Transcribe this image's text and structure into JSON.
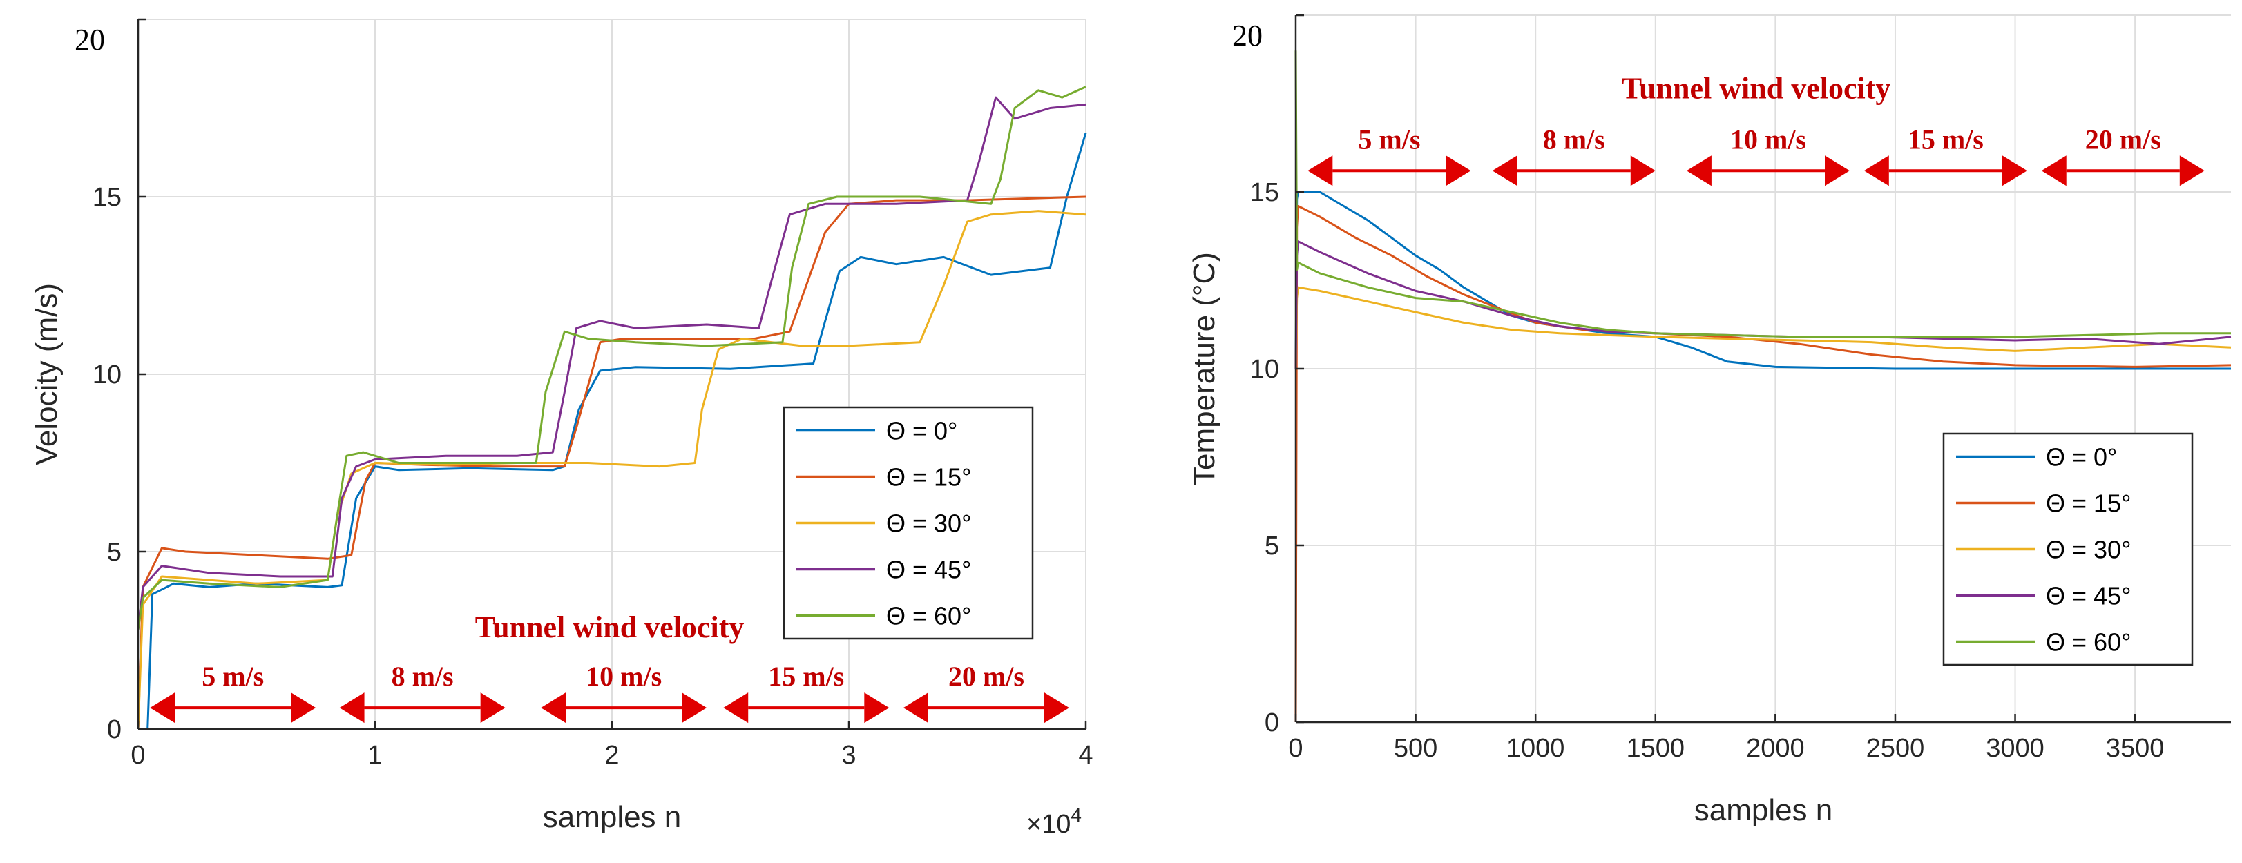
{
  "chart_data": [
    {
      "type": "line",
      "title": "",
      "xlabel": "samples n",
      "ylabel": "Velocity (m/s)",
      "xlim": [
        0,
        4
      ],
      "ylim": [
        0,
        20
      ],
      "x_ticks": [
        0,
        1,
        2,
        3,
        4
      ],
      "y_ticks": [
        0,
        5,
        10,
        15,
        20
      ],
      "x_exponent": "×10",
      "x_exponent_power": "4",
      "corner_label": "20",
      "grid": true,
      "legend_position": "middle-right",
      "annotation": {
        "title": "Tunnel wind velocity",
        "segments": [
          {
            "label": "5 m/s",
            "x_start": 0.05,
            "x_end": 0.75
          },
          {
            "label": "8 m/s",
            "x_start": 0.85,
            "x_end": 1.55
          },
          {
            "label": "10 m/s",
            "x_start": 1.7,
            "x_end": 2.4
          },
          {
            "label": "15 m/s",
            "x_start": 2.47,
            "x_end": 3.17
          },
          {
            "label": "20 m/s",
            "x_start": 3.23,
            "x_end": 3.93
          }
        ],
        "arrow_y": 0.6
      },
      "series": [
        {
          "name": "Θ = 0°",
          "color": "#0072bd",
          "x": [
            0,
            0.04,
            0.06,
            0.15,
            0.3,
            0.5,
            0.8,
            0.86,
            0.92,
            1.0,
            1.1,
            1.4,
            1.75,
            1.8,
            1.86,
            1.95,
            2.1,
            2.5,
            2.85,
            2.9,
            2.96,
            3.05,
            3.2,
            3.4,
            3.6,
            3.85,
            3.92,
            4.0
          ],
          "y": [
            0,
            0,
            3.8,
            4.1,
            4.0,
            4.1,
            4.0,
            4.05,
            6.5,
            7.4,
            7.3,
            7.35,
            7.3,
            7.4,
            9.0,
            10.1,
            10.2,
            10.15,
            10.3,
            11.5,
            12.9,
            13.3,
            13.1,
            13.3,
            12.8,
            13.0,
            15.0,
            16.8
          ]
        },
        {
          "name": "Θ = 15°",
          "color": "#d95319",
          "x": [
            0,
            0.02,
            0.1,
            0.2,
            0.5,
            0.8,
            0.9,
            0.96,
            1.0,
            1.2,
            1.5,
            1.8,
            1.85,
            1.95,
            2.05,
            2.3,
            2.6,
            2.75,
            2.82,
            2.9,
            3.0,
            3.2,
            3.5,
            4.0
          ],
          "y": [
            0,
            4.0,
            5.1,
            5.0,
            4.9,
            4.8,
            4.9,
            7.0,
            7.5,
            7.45,
            7.4,
            7.4,
            8.5,
            10.9,
            11.0,
            11.0,
            11.0,
            11.2,
            12.5,
            14.0,
            14.8,
            14.9,
            14.9,
            15.0
          ]
        },
        {
          "name": "Θ = 30°",
          "color": "#edb120",
          "x": [
            0,
            0.02,
            0.1,
            0.3,
            0.5,
            0.8,
            0.84,
            0.9,
            1.0,
            1.3,
            1.6,
            1.9,
            2.2,
            2.35,
            2.38,
            2.45,
            2.55,
            2.8,
            3.0,
            3.3,
            3.4,
            3.5,
            3.6,
            3.8,
            4.0
          ],
          "y": [
            0,
            3.5,
            4.3,
            4.2,
            4.1,
            4.2,
            6.0,
            7.2,
            7.5,
            7.45,
            7.5,
            7.5,
            7.4,
            7.5,
            9.0,
            10.7,
            11.0,
            10.8,
            10.8,
            10.9,
            12.5,
            14.3,
            14.5,
            14.6,
            14.5
          ]
        },
        {
          "name": "Θ = 45°",
          "color": "#7e2f8e",
          "x": [
            0,
            0.02,
            0.1,
            0.3,
            0.6,
            0.82,
            0.86,
            0.92,
            1.0,
            1.3,
            1.6,
            1.75,
            1.8,
            1.85,
            1.95,
            2.1,
            2.4,
            2.62,
            2.68,
            2.75,
            2.9,
            3.2,
            3.5,
            3.55,
            3.62,
            3.7,
            3.85,
            4.0
          ],
          "y": [
            2.8,
            4.0,
            4.6,
            4.4,
            4.3,
            4.3,
            6.5,
            7.4,
            7.6,
            7.7,
            7.7,
            7.8,
            9.5,
            11.3,
            11.5,
            11.3,
            11.4,
            11.3,
            12.8,
            14.5,
            14.8,
            14.8,
            14.9,
            16.0,
            17.8,
            17.2,
            17.5,
            17.6
          ]
        },
        {
          "name": "Θ = 60°",
          "color": "#77ac30",
          "x": [
            0,
            0.02,
            0.1,
            0.3,
            0.6,
            0.8,
            0.84,
            0.88,
            0.95,
            1.1,
            1.4,
            1.68,
            1.72,
            1.8,
            1.9,
            2.1,
            2.4,
            2.72,
            2.76,
            2.83,
            2.95,
            3.3,
            3.6,
            3.64,
            3.7,
            3.8,
            3.9,
            4.0
          ],
          "y": [
            2.8,
            3.7,
            4.2,
            4.1,
            4.0,
            4.2,
            6.0,
            7.7,
            7.8,
            7.5,
            7.5,
            7.5,
            9.5,
            11.2,
            11.0,
            10.9,
            10.8,
            10.9,
            13.0,
            14.8,
            15.0,
            15.0,
            14.8,
            15.5,
            17.5,
            18.0,
            17.8,
            18.1
          ]
        }
      ]
    },
    {
      "type": "line",
      "title": "",
      "xlabel": "samples n",
      "ylabel": "Temperature (°C)",
      "xlim": [
        0,
        3900
      ],
      "ylim": [
        0,
        20
      ],
      "x_ticks": [
        0,
        500,
        1000,
        1500,
        2000,
        2500,
        3000,
        3500
      ],
      "y_ticks": [
        0,
        5,
        10,
        15,
        20
      ],
      "corner_label": "20",
      "grid": true,
      "legend_position": "bottom-right",
      "annotation": {
        "title": "Tunnel wind velocity",
        "segments": [
          {
            "label": "5 m/s",
            "x_start": 50,
            "x_end": 730
          },
          {
            "label": "8 m/s",
            "x_start": 820,
            "x_end": 1500
          },
          {
            "label": "10 m/s",
            "x_start": 1630,
            "x_end": 2310
          },
          {
            "label": "15 m/s",
            "x_start": 2370,
            "x_end": 3050
          },
          {
            "label": "20 m/s",
            "x_start": 3110,
            "x_end": 3790
          }
        ],
        "arrow_y": 15.6
      },
      "series": [
        {
          "name": "Θ = 0°",
          "color": "#0072bd",
          "x": [
            0,
            5,
            10,
            100,
            200,
            300,
            400,
            500,
            600,
            700,
            800,
            900,
            1000,
            1100,
            1200,
            1300,
            1400,
            1500,
            1650,
            1800,
            2000,
            2500,
            3000,
            3500,
            3900
          ],
          "y": [
            10,
            14.8,
            15.0,
            15.0,
            14.6,
            14.2,
            13.7,
            13.2,
            12.8,
            12.3,
            11.9,
            11.5,
            11.3,
            11.2,
            11.1,
            11.0,
            10.95,
            10.9,
            10.6,
            10.2,
            10.05,
            10.0,
            10.0,
            10.0,
            10.0
          ]
        },
        {
          "name": "Θ = 15°",
          "color": "#d95319",
          "x": [
            0,
            5,
            10,
            100,
            250,
            400,
            550,
            700,
            850,
            1000,
            1200,
            1500,
            1800,
            2100,
            2400,
            2700,
            3000,
            3500,
            3900
          ],
          "y": [
            0,
            14.0,
            14.6,
            14.3,
            13.7,
            13.2,
            12.6,
            12.1,
            11.7,
            11.3,
            11.1,
            11.0,
            10.9,
            10.7,
            10.4,
            10.2,
            10.1,
            10.05,
            10.1
          ]
        },
        {
          "name": "Θ = 30°",
          "color": "#edb120",
          "x": [
            0,
            5,
            10,
            100,
            300,
            500,
            700,
            900,
            1100,
            1300,
            1500,
            1800,
            2100,
            2400,
            2700,
            3000,
            3300,
            3600,
            3900
          ],
          "y": [
            10,
            12.0,
            12.3,
            12.2,
            11.9,
            11.6,
            11.3,
            11.1,
            11.0,
            10.95,
            10.9,
            10.85,
            10.8,
            10.75,
            10.6,
            10.5,
            10.6,
            10.7,
            10.6
          ]
        },
        {
          "name": "Θ = 45°",
          "color": "#7e2f8e",
          "x": [
            0,
            5,
            10,
            100,
            300,
            500,
            700,
            900,
            1100,
            1300,
            1500,
            1800,
            2100,
            2400,
            2700,
            3000,
            3300,
            3600,
            3900
          ],
          "y": [
            10,
            13.2,
            13.6,
            13.3,
            12.7,
            12.2,
            11.9,
            11.5,
            11.2,
            11.05,
            11.0,
            10.95,
            10.9,
            10.9,
            10.85,
            10.8,
            10.85,
            10.7,
            10.9
          ]
        },
        {
          "name": "Θ = 60°",
          "color": "#77ac30",
          "x": [
            0,
            5,
            10,
            100,
            300,
            500,
            700,
            900,
            1100,
            1300,
            1500,
            1800,
            2100,
            2400,
            2700,
            3000,
            3300,
            3600,
            3900
          ],
          "y": [
            19,
            12.8,
            13.0,
            12.7,
            12.3,
            12.0,
            11.9,
            11.6,
            11.3,
            11.1,
            11.0,
            10.95,
            10.9,
            10.9,
            10.9,
            10.9,
            10.95,
            11.0,
            11.0
          ]
        }
      ]
    }
  ]
}
